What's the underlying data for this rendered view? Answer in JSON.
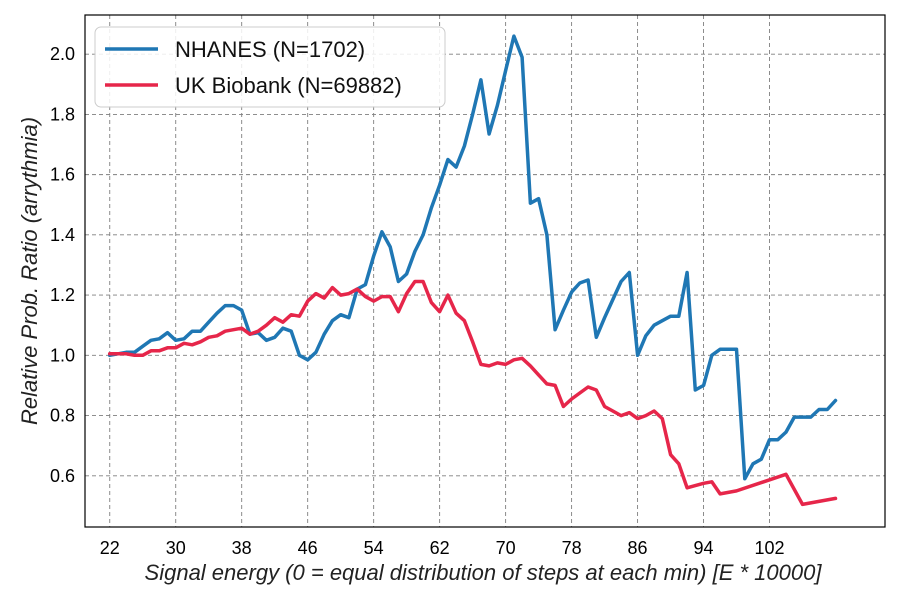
{
  "chart_data": {
    "type": "line",
    "xlabel": "Signal energy (0 = equal distribution of steps at each min) [E * 10000]",
    "ylabel": "Relative Prob. Ratio (arrythmia)",
    "xlim": [
      19,
      116
    ],
    "ylim": [
      0.43,
      2.13
    ],
    "x_ticks": [
      22,
      30,
      38,
      46,
      54,
      62,
      70,
      78,
      86,
      94,
      102
    ],
    "y_ticks": [
      0.6,
      0.8,
      1.0,
      1.2,
      1.4,
      1.6,
      1.8,
      2.0
    ],
    "grid": true,
    "legend_position": "top-left",
    "series": [
      {
        "name": "NHANES (N=1702)",
        "color": "#1f77b4",
        "points": [
          [
            22,
            1.0
          ],
          [
            23,
            1.005
          ],
          [
            24,
            1.01
          ],
          [
            25,
            1.01
          ],
          [
            26,
            1.03
          ],
          [
            27,
            1.05
          ],
          [
            28,
            1.055
          ],
          [
            29,
            1.075
          ],
          [
            30,
            1.05
          ],
          [
            31,
            1.055
          ],
          [
            32,
            1.08
          ],
          [
            33,
            1.08
          ],
          [
            34,
            1.11
          ],
          [
            35,
            1.14
          ],
          [
            36,
            1.165
          ],
          [
            37,
            1.165
          ],
          [
            38,
            1.15
          ],
          [
            39,
            1.07
          ],
          [
            40,
            1.075
          ],
          [
            41,
            1.05
          ],
          [
            42,
            1.06
          ],
          [
            43,
            1.09
          ],
          [
            44,
            1.08
          ],
          [
            45,
            1.0
          ],
          [
            46,
            0.985
          ],
          [
            47,
            1.01
          ],
          [
            48,
            1.07
          ],
          [
            49,
            1.115
          ],
          [
            50,
            1.135
          ],
          [
            51,
            1.125
          ],
          [
            52,
            1.22
          ],
          [
            53,
            1.235
          ],
          [
            54,
            1.33
          ],
          [
            55,
            1.41
          ],
          [
            56,
            1.36
          ],
          [
            57,
            1.245
          ],
          [
            58,
            1.27
          ],
          [
            59,
            1.345
          ],
          [
            60,
            1.4
          ],
          [
            61,
            1.49
          ],
          [
            62,
            1.565
          ],
          [
            63,
            1.65
          ],
          [
            64,
            1.625
          ],
          [
            65,
            1.695
          ],
          [
            66,
            1.8
          ],
          [
            67,
            1.915
          ],
          [
            68,
            1.735
          ],
          [
            69,
            1.83
          ],
          [
            70,
            1.945
          ],
          [
            71,
            2.06
          ],
          [
            72,
            1.99
          ],
          [
            73,
            1.505
          ],
          [
            74,
            1.52
          ],
          [
            75,
            1.4
          ],
          [
            76,
            1.085
          ],
          [
            77,
            1.15
          ],
          [
            78,
            1.21
          ],
          [
            79,
            1.24
          ],
          [
            80,
            1.25
          ],
          [
            81,
            1.06
          ],
          [
            82,
            1.125
          ],
          [
            83,
            1.185
          ],
          [
            84,
            1.245
          ],
          [
            85,
            1.275
          ],
          [
            86,
            1.0
          ],
          [
            87,
            1.065
          ],
          [
            88,
            1.1
          ],
          [
            89,
            1.115
          ],
          [
            90,
            1.13
          ],
          [
            91,
            1.13
          ],
          [
            92,
            1.275
          ],
          [
            93,
            0.885
          ],
          [
            94,
            0.9
          ],
          [
            95,
            1.0
          ],
          [
            96,
            1.02
          ],
          [
            97,
            1.02
          ],
          [
            98,
            1.02
          ],
          [
            99,
            0.59
          ],
          [
            100,
            0.64
          ],
          [
            101,
            0.655
          ],
          [
            102,
            0.72
          ],
          [
            103,
            0.72
          ],
          [
            104,
            0.745
          ],
          [
            105,
            0.795
          ],
          [
            106,
            0.795
          ],
          [
            107,
            0.795
          ],
          [
            108,
            0.82
          ],
          [
            109,
            0.82
          ],
          [
            110,
            0.85
          ]
        ]
      },
      {
        "name": "UK Biobank (N=69882)",
        "color": "#e6264a",
        "points": [
          [
            22,
            1.005
          ],
          [
            23,
            1.005
          ],
          [
            24,
            1.005
          ],
          [
            25,
            1.0
          ],
          [
            26,
            1.0
          ],
          [
            27,
            1.015
          ],
          [
            28,
            1.015
          ],
          [
            29,
            1.025
          ],
          [
            30,
            1.025
          ],
          [
            31,
            1.04
          ],
          [
            32,
            1.035
          ],
          [
            33,
            1.045
          ],
          [
            34,
            1.06
          ],
          [
            35,
            1.065
          ],
          [
            36,
            1.08
          ],
          [
            37,
            1.085
          ],
          [
            38,
            1.09
          ],
          [
            39,
            1.07
          ],
          [
            40,
            1.08
          ],
          [
            41,
            1.1
          ],
          [
            42,
            1.125
          ],
          [
            43,
            1.11
          ],
          [
            44,
            1.135
          ],
          [
            45,
            1.13
          ],
          [
            46,
            1.18
          ],
          [
            47,
            1.205
          ],
          [
            48,
            1.19
          ],
          [
            49,
            1.225
          ],
          [
            50,
            1.2
          ],
          [
            51,
            1.205
          ],
          [
            52,
            1.22
          ],
          [
            53,
            1.195
          ],
          [
            54,
            1.18
          ],
          [
            55,
            1.195
          ],
          [
            56,
            1.195
          ],
          [
            57,
            1.145
          ],
          [
            58,
            1.205
          ],
          [
            59,
            1.245
          ],
          [
            60,
            1.245
          ],
          [
            61,
            1.175
          ],
          [
            62,
            1.145
          ],
          [
            63,
            1.2
          ],
          [
            64,
            1.14
          ],
          [
            65,
            1.115
          ],
          [
            66,
            1.045
          ],
          [
            67,
            0.97
          ],
          [
            68,
            0.965
          ],
          [
            69,
            0.975
          ],
          [
            70,
            0.97
          ],
          [
            71,
            0.985
          ],
          [
            72,
            0.99
          ],
          [
            73,
            0.965
          ],
          [
            74,
            0.935
          ],
          [
            75,
            0.905
          ],
          [
            76,
            0.9
          ],
          [
            77,
            0.83
          ],
          [
            78,
            0.855
          ],
          [
            79,
            0.875
          ],
          [
            80,
            0.895
          ],
          [
            81,
            0.885
          ],
          [
            82,
            0.83
          ],
          [
            83,
            0.815
          ],
          [
            84,
            0.8
          ],
          [
            85,
            0.81
          ],
          [
            86,
            0.79
          ],
          [
            87,
            0.8
          ],
          [
            88,
            0.815
          ],
          [
            89,
            0.79
          ],
          [
            90,
            0.67
          ],
          [
            91,
            0.64
          ],
          [
            92,
            0.56
          ],
          [
            94,
            0.575
          ],
          [
            95,
            0.58
          ],
          [
            96,
            0.54
          ],
          [
            98,
            0.55
          ],
          [
            104,
            0.605
          ],
          [
            106,
            0.505
          ],
          [
            110,
            0.525
          ]
        ]
      }
    ]
  }
}
